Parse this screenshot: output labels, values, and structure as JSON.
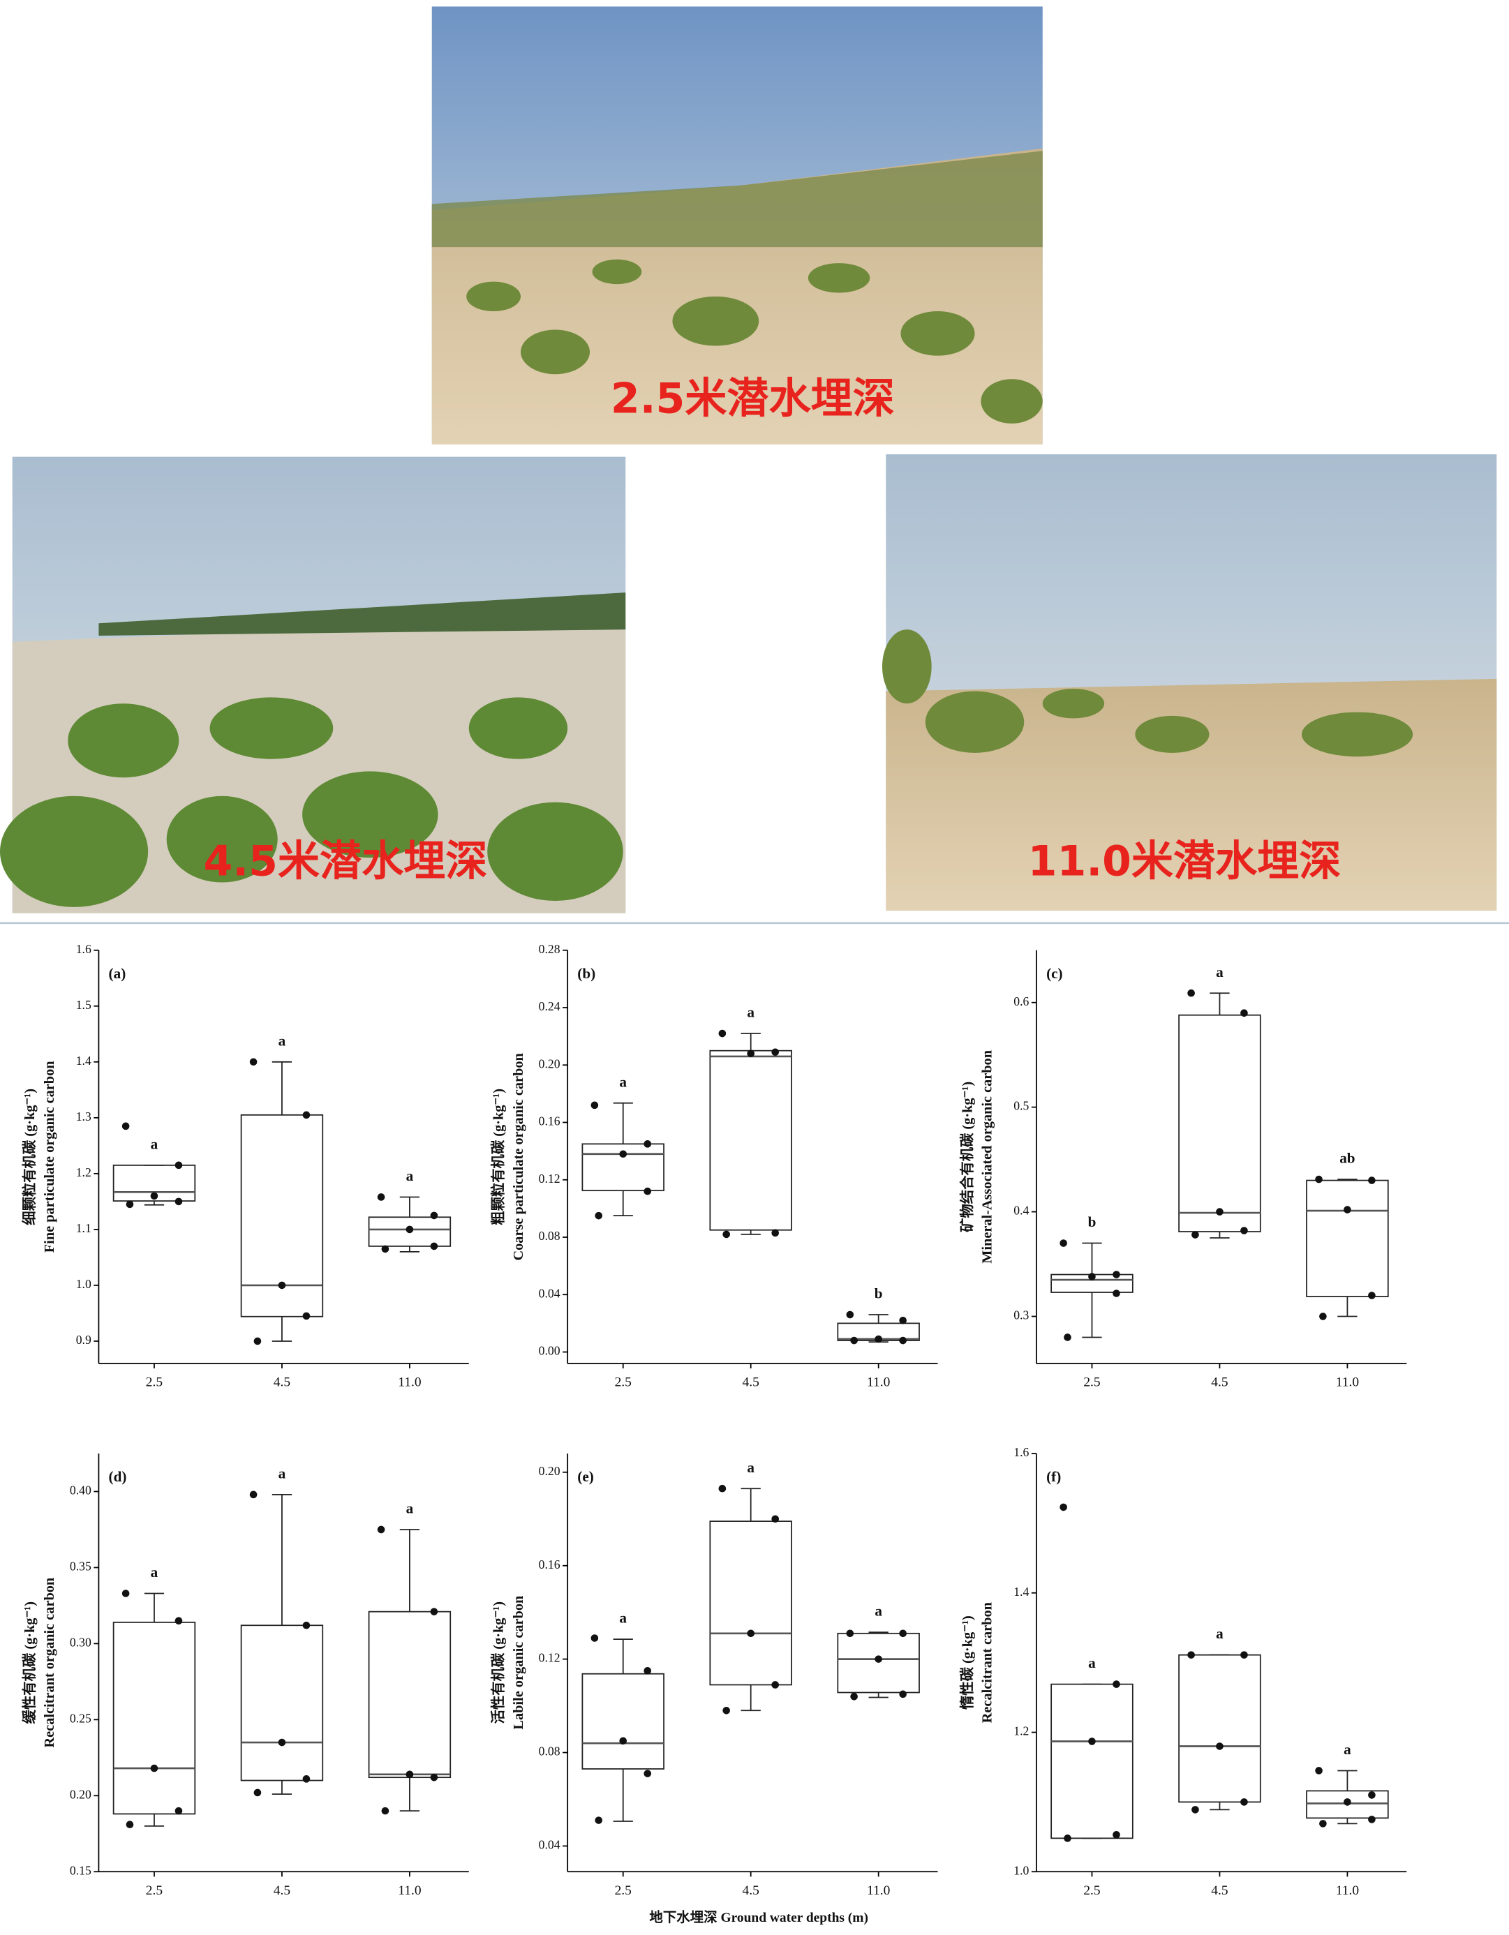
{
  "photos": [
    {
      "caption": "2.5米潜水埋深"
    },
    {
      "caption": "4.5米潜水埋深"
    },
    {
      "caption": "11.0米潜水埋深"
    }
  ],
  "figure_xlabel": "地下水埋深 Ground water depths (m)",
  "chart_data": [
    {
      "type": "box",
      "panel": "(a)",
      "ylabel": [
        "细颗粒有机碳 (g·kg⁻¹)",
        "Fine particulate organic carbon"
      ],
      "categories": [
        "2.5",
        "4.5",
        "11.0"
      ],
      "ylim": [
        0.86,
        1.6
      ],
      "yticks": [
        0.9,
        {
          "value": 1,
          "label": "1.0"
        },
        1.1,
        1.2,
        1.3,
        1.4,
        1.5,
        1.6
      ],
      "boxes": [
        {
          "min": 1.144,
          "q1": 1.151,
          "median": 1.167,
          "q3": 1.215,
          "max": 1.215,
          "points": [
            1.285,
            1.215,
            1.16,
            1.15,
            1.145
          ],
          "letter": "a"
        },
        {
          "min": 0.9,
          "q1": 0.944,
          "median": 1.0,
          "q3": 1.305,
          "max": 1.4,
          "points": [
            1.4,
            1.305,
            1.0,
            0.945,
            0.9
          ],
          "letter": "a"
        },
        {
          "min": 1.06,
          "q1": 1.07,
          "median": 1.1,
          "q3": 1.122,
          "max": 1.158,
          "points": [
            1.158,
            1.125,
            1.1,
            1.07,
            1.065
          ],
          "letter": "a"
        }
      ]
    },
    {
      "type": "box",
      "panel": "(b)",
      "ylabel": [
        "粗颗粒有机碳 (g·kg⁻¹)",
        "Coarse particulate organic carbon"
      ],
      "categories": [
        "2.5",
        "4.5",
        "11.0"
      ],
      "ylim": [
        -0.008,
        0.28
      ],
      "yticks": [
        {
          "value": 0,
          "label": "0.00"
        },
        0.04,
        0.08,
        0.12,
        0.16,
        {
          "value": 0.2,
          "label": "0.20"
        },
        0.24,
        0.28
      ],
      "boxes": [
        {
          "min": 0.095,
          "q1": 0.1125,
          "median": 0.138,
          "q3": 0.145,
          "max": 0.1735,
          "points": [
            0.172,
            0.145,
            0.138,
            0.112,
            0.095
          ],
          "letter": "a"
        },
        {
          "min": 0.082,
          "q1": 0.085,
          "median": 0.206,
          "q3": 0.21,
          "max": 0.222,
          "points": [
            0.222,
            0.209,
            0.208,
            0.083,
            0.082
          ],
          "letter": "a"
        },
        {
          "min": 0.007,
          "q1": 0.008,
          "median": 0.009,
          "q3": 0.02,
          "max": 0.026,
          "points": [
            0.026,
            0.022,
            0.009,
            0.008,
            0.008
          ],
          "letter": "b"
        }
      ]
    },
    {
      "type": "box",
      "panel": "(c)",
      "ylabel": [
        "矿物结合有机碳 (g·kg⁻¹)",
        "Mineral-Associated organic carbon"
      ],
      "categories": [
        "2.5",
        "4.5",
        "11.0"
      ],
      "ylim": [
        0.255,
        0.65
      ],
      "yticks": [
        0.3,
        0.4,
        0.5,
        0.6
      ],
      "boxes": [
        {
          "min": 0.28,
          "q1": 0.323,
          "median": 0.335,
          "q3": 0.34,
          "max": 0.37,
          "points": [
            0.37,
            0.34,
            0.338,
            0.322,
            0.28
          ],
          "letter": "b"
        },
        {
          "min": 0.375,
          "q1": 0.381,
          "median": 0.399,
          "q3": 0.588,
          "max": 0.609,
          "points": [
            0.609,
            0.59,
            0.4,
            0.382,
            0.378
          ],
          "letter": "a"
        },
        {
          "min": 0.3,
          "q1": 0.319,
          "median": 0.401,
          "q3": 0.43,
          "max": 0.431,
          "points": [
            0.431,
            0.43,
            0.402,
            0.32,
            0.3
          ],
          "letter": "ab"
        }
      ]
    },
    {
      "type": "box",
      "panel": "(d)",
      "ylabel": [
        "缓性有机碳 (g·kg⁻¹)",
        "Recalcitrant organic carbon"
      ],
      "categories": [
        "2.5",
        "4.5",
        "11.0"
      ],
      "ylim": [
        0.15,
        0.425
      ],
      "yticks": [
        0.15,
        {
          "value": 0.2,
          "label": "0.20"
        },
        0.25,
        {
          "value": 0.3,
          "label": "0.30"
        },
        0.35,
        {
          "value": 0.4,
          "label": "0.40"
        }
      ],
      "boxes": [
        {
          "min": 0.18,
          "q1": 0.188,
          "median": 0.218,
          "q3": 0.314,
          "max": 0.333,
          "points": [
            0.333,
            0.315,
            0.218,
            0.19,
            0.181
          ],
          "letter": "a"
        },
        {
          "min": 0.201,
          "q1": 0.21,
          "median": 0.235,
          "q3": 0.312,
          "max": 0.398,
          "points": [
            0.398,
            0.312,
            0.235,
            0.211,
            0.202
          ],
          "letter": "a"
        },
        {
          "min": 0.19,
          "q1": 0.212,
          "median": 0.214,
          "q3": 0.321,
          "max": 0.375,
          "points": [
            0.375,
            0.321,
            0.214,
            0.212,
            0.19
          ],
          "letter": "a"
        }
      ]
    },
    {
      "type": "box",
      "panel": "(e)",
      "ylabel": [
        "活性有机碳 (g·kg⁻¹)",
        "Labile organic carbon"
      ],
      "categories": [
        "2.5",
        "4.5",
        "11.0"
      ],
      "ylim": [
        0.029,
        0.208
      ],
      "yticks": [
        0.04,
        0.08,
        0.12,
        0.16,
        {
          "value": 0.2,
          "label": "0.20"
        }
      ],
      "boxes": [
        {
          "min": 0.0506,
          "q1": 0.073,
          "median": 0.084,
          "q3": 0.1137,
          "max": 0.1285,
          "points": [
            0.129,
            0.115,
            0.085,
            0.071,
            0.051
          ],
          "letter": "a"
        },
        {
          "min": 0.098,
          "q1": 0.109,
          "median": 0.131,
          "q3": 0.179,
          "max": 0.193,
          "points": [
            0.193,
            0.18,
            0.131,
            0.109,
            0.098
          ],
          "letter": "a"
        },
        {
          "min": 0.1036,
          "q1": 0.1057,
          "median": 0.12,
          "q3": 0.131,
          "max": 0.1315,
          "points": [
            0.131,
            0.131,
            0.12,
            0.105,
            0.104
          ],
          "letter": "a"
        }
      ]
    },
    {
      "type": "box",
      "panel": "(f)",
      "ylabel": [
        "惰性碳 (g·kg⁻¹)",
        "Recalcitrant carbon"
      ],
      "categories": [
        "2.5",
        "4.5",
        "11.0"
      ],
      "ylim": [
        1.0,
        1.6
      ],
      "yticks": [
        {
          "value": 1,
          "label": "1.0"
        },
        1.2,
        1.4,
        1.6
      ],
      "boxes": [
        {
          "min": 1.048,
          "q1": 1.048,
          "median": 1.187,
          "q3": 1.269,
          "max": 1.269,
          "points": [
            1.523,
            1.269,
            1.187,
            1.053,
            1.048
          ],
          "letter": "a"
        },
        {
          "min": 1.089,
          "q1": 1.1,
          "median": 1.18,
          "q3": 1.311,
          "max": 1.311,
          "points": [
            1.311,
            1.311,
            1.18,
            1.1,
            1.089
          ],
          "letter": "a"
        },
        {
          "min": 1.069,
          "q1": 1.077,
          "median": 1.098,
          "q3": 1.116,
          "max": 1.145,
          "points": [
            1.145,
            1.11,
            1.1,
            1.075,
            1.069
          ],
          "letter": "a"
        }
      ]
    }
  ]
}
